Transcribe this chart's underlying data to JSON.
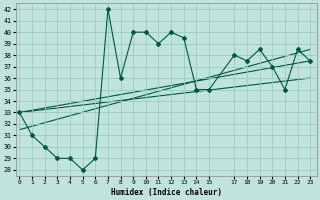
{
  "xlabel": "Humidex (Indice chaleur)",
  "bg_color": "#c0e4dc",
  "grid_color": "#98ccc4",
  "line_color": "#005544",
  "x_main": [
    0,
    1,
    2,
    3,
    4,
    5,
    6,
    7,
    8,
    9,
    10,
    11,
    12,
    13,
    14,
    15,
    17,
    18,
    19,
    20,
    21,
    22,
    23
  ],
  "y_main": [
    33,
    31,
    30,
    29,
    29,
    28,
    29,
    42,
    36,
    40,
    40,
    39,
    40,
    39.5,
    35,
    35,
    38,
    37.5,
    38.5,
    37,
    35,
    38.5,
    37.5
  ],
  "trend1_x": [
    0,
    23
  ],
  "trend1_y": [
    33,
    37.5
  ],
  "trend2_x": [
    0,
    23
  ],
  "trend2_y": [
    33,
    36.0
  ],
  "trend3_x": [
    0,
    23
  ],
  "trend3_y": [
    31.5,
    38.5
  ],
  "ylim": [
    27.5,
    42.5
  ],
  "xlim": [
    -0.3,
    23.5
  ],
  "yticks": [
    28,
    29,
    30,
    31,
    32,
    33,
    34,
    35,
    36,
    37,
    38,
    39,
    40,
    41,
    42
  ],
  "xticks": [
    0,
    1,
    2,
    3,
    4,
    5,
    6,
    7,
    8,
    9,
    10,
    11,
    12,
    13,
    14,
    15,
    17,
    18,
    19,
    20,
    21,
    22,
    23
  ]
}
